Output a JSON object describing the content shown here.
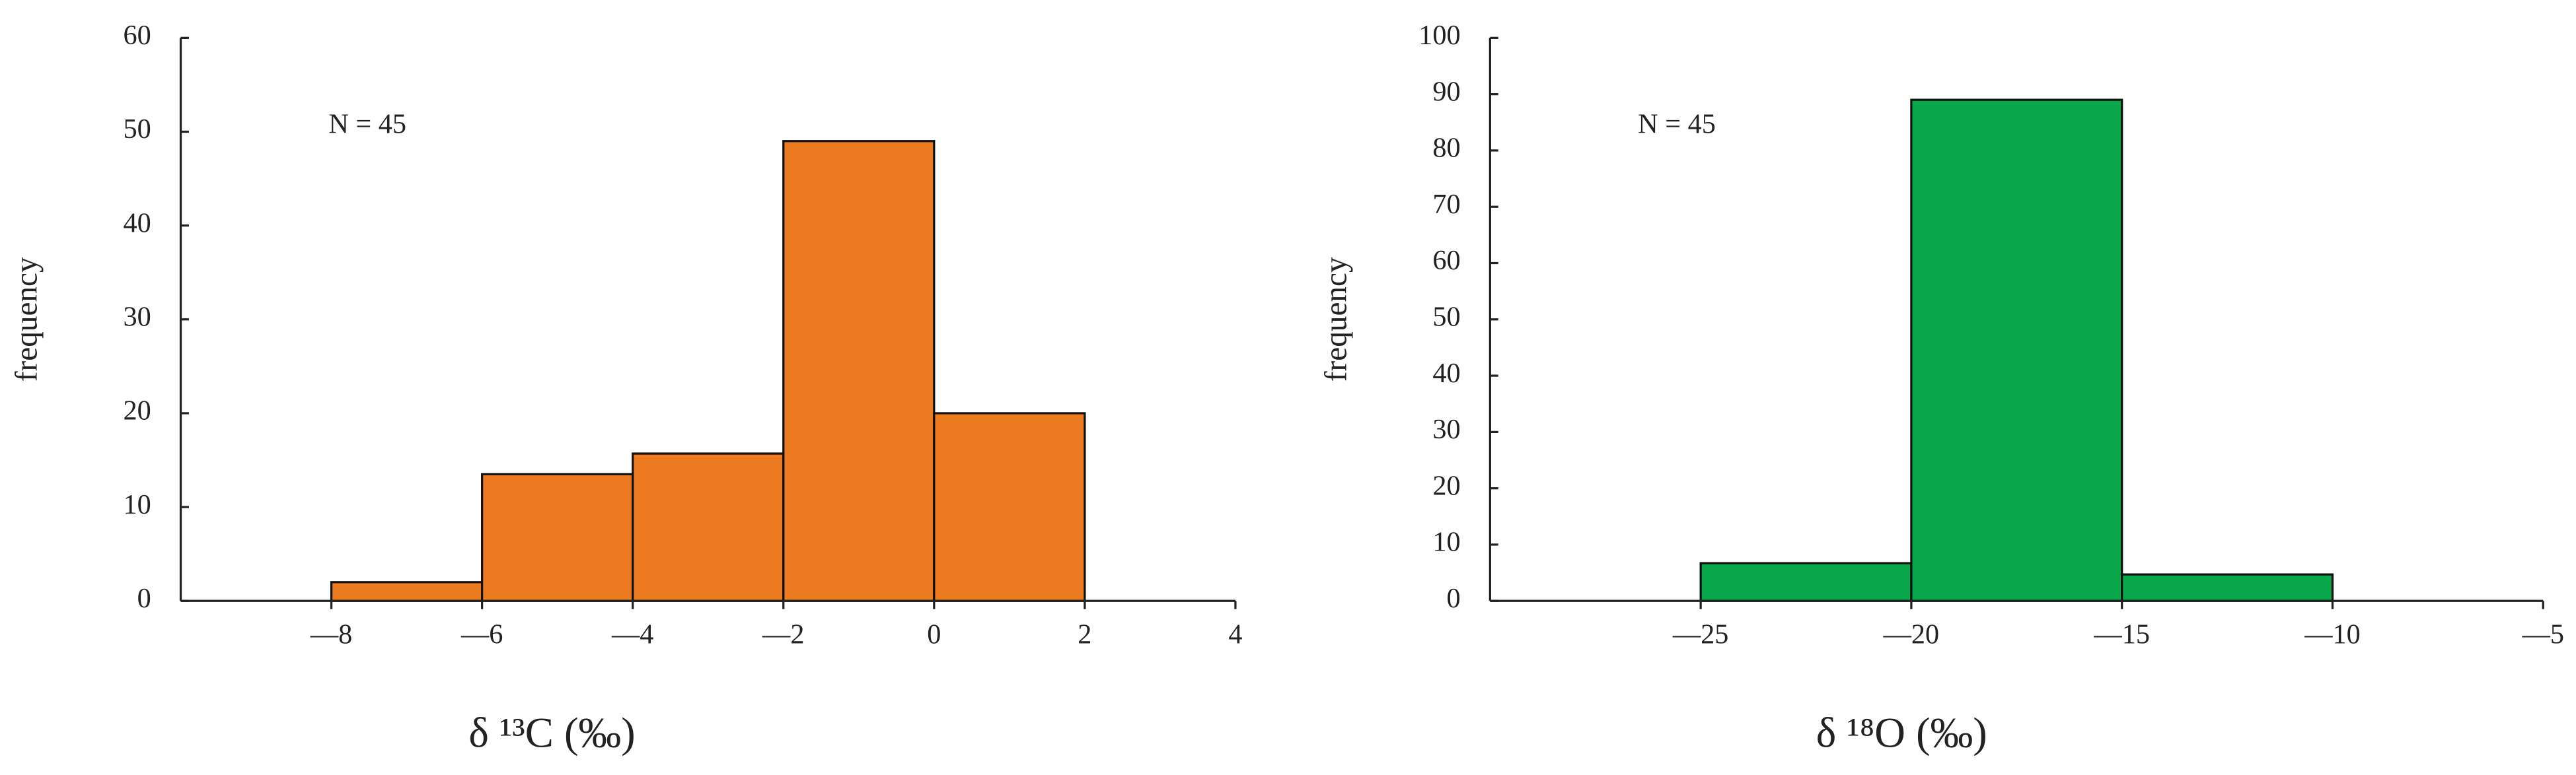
{
  "chart_data": [
    {
      "type": "histogram",
      "annotation": "N = 45",
      "x_label": "δ ¹³C (‰)",
      "y_label": "frequency",
      "bins": [
        -8,
        -6,
        -4,
        -2,
        0,
        2
      ],
      "values": [
        2,
        13.5,
        15.7,
        49,
        20
      ],
      "color": "#ec7a1f",
      "xlim": [
        -10,
        4
      ],
      "xticks": [
        {
          "value": -8,
          "label": "—8"
        },
        {
          "value": -6,
          "label": "—6"
        },
        {
          "value": -4,
          "label": "—4"
        },
        {
          "value": -2,
          "label": "—2"
        },
        0,
        2,
        4
      ],
      "ylim": [
        0,
        60
      ],
      "yticks": [
        0,
        10,
        20,
        30,
        40,
        50,
        60
      ]
    },
    {
      "type": "histogram",
      "annotation": "N = 45",
      "x_label": "δ ¹⁸O (‰)",
      "y_label": "frequency",
      "bins": [
        -25,
        -20,
        -15,
        -10
      ],
      "values": [
        6.7,
        89,
        4.7
      ],
      "color": "#08a84a",
      "xlim": [
        -30,
        -5
      ],
      "xticks": [
        {
          "value": -25,
          "label": "—25"
        },
        {
          "value": -20,
          "label": "—20"
        },
        {
          "value": -15,
          "label": "—15"
        },
        {
          "value": -10,
          "label": "—10"
        },
        {
          "value": -5,
          "label": "—5"
        }
      ],
      "ylim": [
        0,
        100
      ],
      "yticks": [
        0,
        10,
        20,
        30,
        40,
        50,
        60,
        70,
        80,
        90,
        100
      ]
    }
  ]
}
